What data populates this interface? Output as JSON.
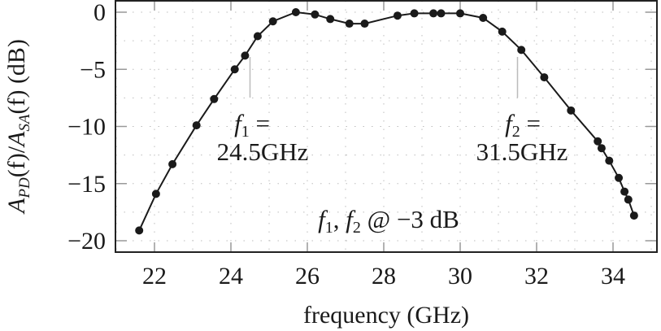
{
  "chart_data": {
    "type": "line",
    "title": "",
    "xlabel": "frequency (GHz)",
    "ylabel": "A_PD(f)/A_SA(f) (dB)",
    "xlim": [
      20.9,
      35.1
    ],
    "ylim": [
      -21.0,
      1.0
    ],
    "xticks": [
      22,
      24,
      26,
      28,
      30,
      32,
      34
    ],
    "yticks": [
      0,
      -5,
      -10,
      -15,
      -20
    ],
    "xtick_labels": [
      "22",
      "24",
      "26",
      "28",
      "30",
      "32",
      "34"
    ],
    "ytick_labels": [
      "0",
      "−5",
      "−10",
      "−15",
      "−20"
    ],
    "grid": true,
    "legend": null,
    "series": [
      {
        "name": "A_PD/A_SA",
        "marker": "circle",
        "color": "#1a1a1a",
        "x": [
          21.6,
          22.04,
          22.47,
          23.1,
          23.56,
          24.1,
          24.37,
          24.7,
          25.1,
          25.7,
          26.2,
          26.6,
          27.1,
          27.5,
          28.36,
          28.8,
          29.3,
          29.5,
          30.0,
          30.6,
          31.1,
          31.6,
          32.2,
          32.9,
          33.6,
          33.7,
          33.9,
          34.15,
          34.3,
          34.4,
          34.55
        ],
        "values": [
          -19.1,
          -15.9,
          -13.3,
          -9.9,
          -7.6,
          -5.0,
          -3.8,
          -2.1,
          -0.8,
          0.0,
          -0.2,
          -0.6,
          -1.0,
          -1.0,
          -0.3,
          -0.1,
          -0.1,
          -0.1,
          -0.1,
          -0.5,
          -1.7,
          -3.3,
          -5.7,
          -8.6,
          -11.3,
          -11.9,
          -13.0,
          -14.5,
          -15.7,
          -16.4,
          -17.8
        ]
      }
    ],
    "annotations": [
      {
        "text_line1": "f₁ =",
        "text_line2": "24.5GHz",
        "x": 24.5,
        "marker_line": true
      },
      {
        "text_line1": "f₂ =",
        "text_line2": "31.5GHz",
        "x": 31.5,
        "marker_line": true
      },
      {
        "text": "f₁, f₂ @ −3 dB"
      }
    ]
  },
  "labels": {
    "xlabel": "frequency (GHz)",
    "ylabel_main_a": "A",
    "ylabel_sub_a": "PD",
    "ylabel_mid": "(f)/",
    "ylabel_main_b": "A",
    "ylabel_sub_b": "SA",
    "ylabel_tail": "(f) (dB)",
    "f1_line1": "f",
    "f1_sub": "1",
    "f1_eq": " =",
    "f1_value": "24.5GHz",
    "f2_line1": "f",
    "f2_sub": "2",
    "f2_eq": " =",
    "f2_value": "31.5GHz",
    "cond_f1": "f",
    "cond_sub1": "1",
    "cond_sep": ", ",
    "cond_f2": "f",
    "cond_sub2": "2",
    "cond_tail": " @ −3 dB"
  }
}
